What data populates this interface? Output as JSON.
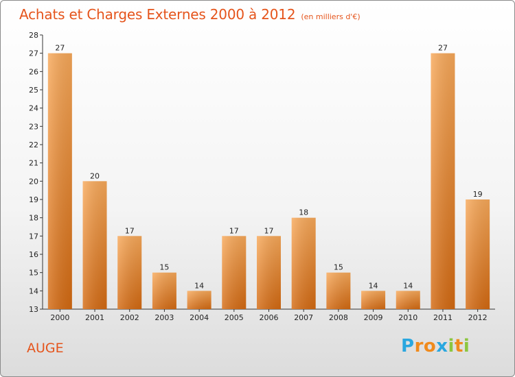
{
  "title": {
    "main": "Achats et Charges Externes 2000 à 2012",
    "unit": "(en milliers d'€)"
  },
  "commune": "AUGE",
  "logo": {
    "letters": [
      "P",
      "r",
      "o",
      "x",
      "i",
      "t",
      "i"
    ],
    "colors": [
      "#2aa7df",
      "#f08a1c",
      "#f08a1c",
      "#2aa7df",
      "#8cc63f",
      "#f08a1c",
      "#8cc63f"
    ]
  },
  "colors": {
    "bar": "#f08a2c",
    "bar_light": "#f8a95a",
    "bar_dark": "#d46a12",
    "title": "#e5541b"
  },
  "chart_data": {
    "type": "bar",
    "title": "Achats et Charges Externes 2000 à 2012",
    "ylabel": "",
    "xlabel": "",
    "categories": [
      "2000",
      "2001",
      "2002",
      "2003",
      "2004",
      "2005",
      "2006",
      "2007",
      "2008",
      "2009",
      "2010",
      "2011",
      "2012"
    ],
    "values": [
      27,
      20,
      17,
      15,
      14,
      17,
      17,
      18,
      15,
      14,
      14,
      27,
      19
    ],
    "ylim": [
      13,
      28
    ],
    "yticks": [
      13,
      14,
      15,
      16,
      17,
      18,
      19,
      20,
      21,
      22,
      23,
      24,
      25,
      26,
      27,
      28
    ],
    "grid": false,
    "legend": "none"
  }
}
